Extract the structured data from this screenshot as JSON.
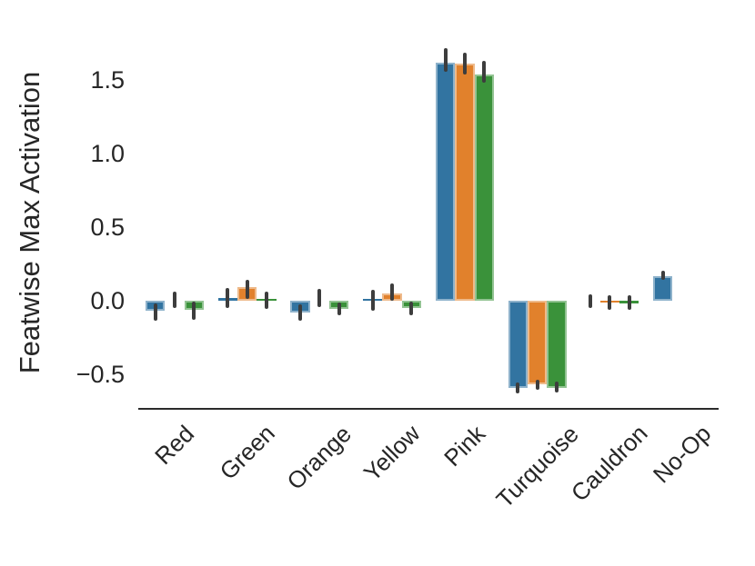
{
  "figure": {
    "background": "#ffffff",
    "axis_line_color": "#2b2b2b",
    "error_bar_color": "#3d3d3d",
    "text_color": "#262626"
  },
  "chart_data": {
    "type": "bar",
    "title": "",
    "xlabel": "",
    "ylabel": "Featwise Max Activation",
    "grid": false,
    "legend": "none",
    "x_tick_rotation": 45,
    "categories": [
      "Red",
      "Green",
      "Orange",
      "Yellow",
      "Pink",
      "Turquoise",
      "Cauldron",
      "No-Op"
    ],
    "series": [
      {
        "name": "blue",
        "color": "#3274a1",
        "values": [
          -0.07,
          0.02,
          -0.08,
          0.01,
          1.62,
          -0.59,
          0.0,
          0.17
        ],
        "errors": [
          [
            -0.135,
            -0.02
          ],
          [
            -0.05,
            0.085
          ],
          [
            -0.135,
            -0.025
          ],
          [
            -0.065,
            0.075
          ],
          [
            1.56,
            1.72
          ],
          [
            -0.63,
            -0.555
          ],
          [
            -0.05,
            0.045
          ],
          [
            0.145,
            0.205
          ]
        ]
      },
      {
        "name": "orange",
        "color": "#e1812c",
        "values": [
          0.0,
          0.09,
          0.0,
          0.05,
          1.61,
          -0.57,
          -0.015,
          0.0
        ],
        "errors": [
          [
            -0.05,
            0.06
          ],
          [
            0.01,
            0.145
          ],
          [
            -0.04,
            0.08
          ],
          [
            0.0,
            0.115
          ],
          [
            1.54,
            1.69
          ],
          [
            -0.605,
            -0.54
          ],
          [
            -0.06,
            0.04
          ],
          null
        ]
      },
      {
        "name": "green",
        "color": "#3a923a",
        "values": [
          -0.06,
          0.01,
          -0.055,
          -0.05,
          1.54,
          -0.59,
          -0.02,
          0.0
        ],
        "errors": [
          [
            -0.13,
            -0.005
          ],
          [
            -0.055,
            0.065
          ],
          [
            -0.1,
            -0.012
          ],
          [
            -0.1,
            -0.005
          ],
          [
            1.48,
            1.63
          ],
          [
            -0.625,
            -0.55
          ],
          [
            -0.06,
            0.035
          ],
          null
        ]
      }
    ],
    "ylim": [
      -0.735,
      1.86
    ],
    "yticks": [
      1.5,
      1.0,
      0.5,
      0.0,
      -0.5
    ],
    "ytick_labels": [
      "1.5",
      "1.0",
      "0.5",
      "0.0",
      "−0.5"
    ]
  }
}
